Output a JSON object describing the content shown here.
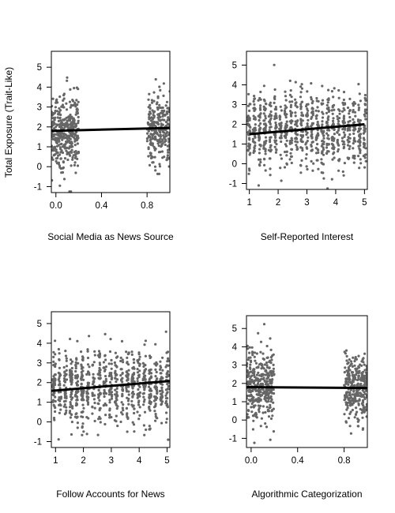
{
  "figure": {
    "ylabel": "Total Exposure (Trait-Like)",
    "point_color": "#666666",
    "line_color": "#000000"
  },
  "chart_data": [
    {
      "type": "scatter",
      "title": "",
      "xlabel": "Social Media as News Source",
      "ylabel": "Total Exposure (Trait-Like)",
      "xlim": [
        -0.04,
        1.0
      ],
      "ylim": [
        -1.3,
        5.8
      ],
      "xticks": [
        0.0,
        0.4,
        0.8
      ],
      "xtick_labels": [
        "0.0",
        "0.4",
        "0.8"
      ],
      "yticks": [
        -1,
        0,
        1,
        2,
        3,
        4,
        5
      ],
      "ytick_labels": [
        "-1",
        "0",
        "1",
        "2",
        "3",
        "4",
        "5"
      ],
      "point_groups": [
        {
          "x_min": -0.04,
          "x_max": 0.2,
          "y_center": 1.8,
          "y_spread": 0.9,
          "count": 380
        },
        {
          "x_min": 0.8,
          "x_max": 1.0,
          "y_center": 1.9,
          "y_spread": 0.9,
          "count": 260
        }
      ],
      "fit_line": {
        "x": [
          -0.04,
          1.0
        ],
        "y": [
          1.8,
          1.95
        ]
      }
    },
    {
      "type": "scatter",
      "title": "",
      "xlabel": "Self-Reported Interest",
      "ylabel": "",
      "xlim": [
        0.9,
        5.1
      ],
      "ylim": [
        -1.3,
        5.7
      ],
      "xticks": [
        1,
        2,
        3,
        4,
        5
      ],
      "xtick_labels": [
        "1",
        "2",
        "3",
        "4",
        "5"
      ],
      "yticks": [
        -1,
        0,
        1,
        2,
        3,
        4,
        5
      ],
      "ytick_labels": [
        "-1",
        "0",
        "1",
        "2",
        "3",
        "4",
        "5"
      ],
      "point_groups": [
        {
          "x_min": 0.9,
          "x_max": 5.1,
          "y_center": 1.75,
          "y_spread": 0.95,
          "count": 900,
          "columns": 23
        }
      ],
      "fit_line": {
        "x": [
          1,
          5
        ],
        "y": [
          1.5,
          2.0
        ]
      }
    },
    {
      "type": "scatter",
      "title": "",
      "xlabel": "Follow Accounts for News",
      "ylabel": "",
      "xlim": [
        0.85,
        5.1
      ],
      "ylim": [
        -1.3,
        5.6
      ],
      "xticks": [
        1,
        2,
        3,
        4,
        5
      ],
      "xtick_labels": [
        "1",
        "2",
        "3",
        "4",
        "5"
      ],
      "yticks": [
        -1,
        0,
        1,
        2,
        3,
        4,
        5
      ],
      "ytick_labels": [
        "-1",
        "0",
        "1",
        "2",
        "3",
        "4",
        "5"
      ],
      "point_groups": [
        {
          "x_min": 0.85,
          "x_max": 5.1,
          "y_center": 1.85,
          "y_spread": 0.95,
          "count": 900,
          "columns": 21
        }
      ],
      "fit_line": {
        "x": [
          0.85,
          5.1
        ],
        "y": [
          1.58,
          2.08
        ]
      }
    },
    {
      "type": "scatter",
      "title": "",
      "xlabel": "Algorithmic Categorization",
      "ylabel": "",
      "xlim": [
        -0.04,
        1.0
      ],
      "ylim": [
        -1.5,
        5.7
      ],
      "xticks": [
        0.0,
        0.4,
        0.8
      ],
      "xtick_labels": [
        "0.0",
        "0.4",
        "0.8"
      ],
      "yticks": [
        -1,
        0,
        1,
        2,
        3,
        4,
        5
      ],
      "ytick_labels": [
        "-1",
        "0",
        "1",
        "2",
        "3",
        "4",
        "5"
      ],
      "point_groups": [
        {
          "x_min": -0.04,
          "x_max": 0.2,
          "y_center": 1.8,
          "y_spread": 0.95,
          "count": 360
        },
        {
          "x_min": 0.8,
          "x_max": 1.0,
          "y_center": 1.75,
          "y_spread": 0.9,
          "count": 300
        }
      ],
      "fit_line": {
        "x": [
          -0.04,
          1.0
        ],
        "y": [
          1.8,
          1.75
        ]
      }
    }
  ]
}
